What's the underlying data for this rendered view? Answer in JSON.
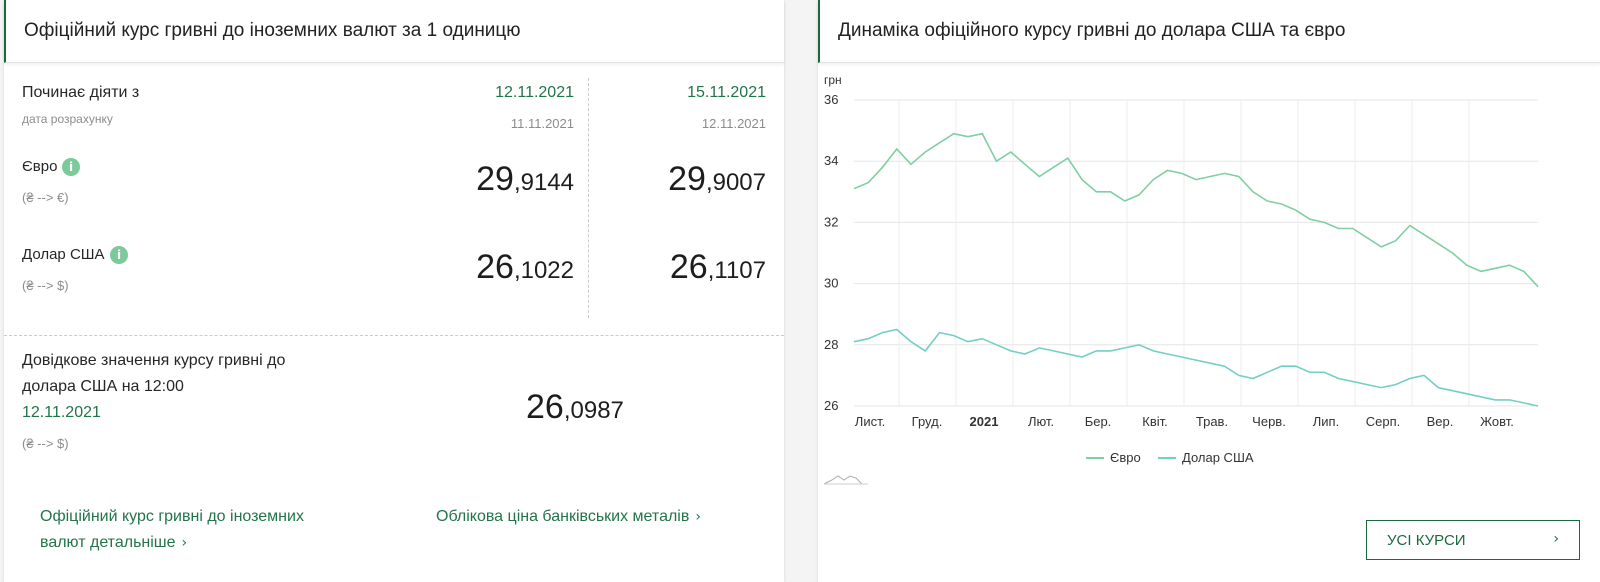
{
  "left": {
    "title": "Офіційний курс гривні до іноземних валют за 1 одиницю",
    "starts_label": "Починає діяти з",
    "calc_label": "дата розрахунку",
    "col1": {
      "date": "12.11.2021",
      "calc_date": "11.11.2021",
      "eur_int": "29",
      "eur_frac": ",9144",
      "usd_int": "26",
      "usd_frac": ",1022"
    },
    "col2": {
      "date": "15.11.2021",
      "calc_date": "12.11.2021",
      "eur_int": "29",
      "eur_frac": ",9007",
      "usd_int": "26",
      "usd_frac": ",1107"
    },
    "eur_label": "Євро",
    "eur_dir": "(₴ --> €)",
    "usd_label": "Долар США",
    "usd_dir": "(₴ --> $)",
    "ref_label_1": "Довідкове значення курсу гривні до",
    "ref_label_2": "долара США на 12:00",
    "ref_date": "12.11.2021",
    "ref_dir": "(₴ --> $)",
    "ref_int": "26",
    "ref_frac": ",0987",
    "link_detail_1": "Офіційний курс гривні до іноземних",
    "link_detail_2": "валют детальніше",
    "link_metals": "Облікова ціна банківських металів",
    "info_glyph": "i"
  },
  "right": {
    "title": "Динаміка офіційного курсу гривні до долара США та євро",
    "button_label": "УСІ КУРСИ"
  },
  "chart_data": {
    "type": "line",
    "title": "",
    "ylabel": "грн",
    "xlabel": "",
    "ylim": [
      26,
      36
    ],
    "yticks": [
      26,
      28,
      30,
      32,
      34,
      36
    ],
    "x_labels": [
      "Лист.",
      "Груд.",
      "2021",
      "Лют.",
      "Бер.",
      "Квіт.",
      "Трав.",
      "Черв.",
      "Лип.",
      "Серп.",
      "Вер.",
      "Жовт."
    ],
    "grid": true,
    "legend_position": "bottom",
    "colors": {
      "eur": "#7fcfa3",
      "usd": "#72cfc4"
    },
    "series": [
      {
        "name": "Євро",
        "values": [
          33.1,
          33.3,
          33.8,
          34.4,
          33.9,
          34.3,
          34.6,
          34.9,
          34.8,
          34.9,
          34.0,
          34.3,
          33.9,
          33.5,
          33.8,
          34.1,
          33.4,
          33.0,
          33.0,
          32.7,
          32.9,
          33.4,
          33.7,
          33.6,
          33.4,
          33.5,
          33.6,
          33.5,
          33.0,
          32.7,
          32.6,
          32.4,
          32.1,
          32.0,
          31.8,
          31.8,
          31.5,
          31.2,
          31.4,
          31.9,
          31.6,
          31.3,
          31.0,
          30.6,
          30.4,
          30.5,
          30.6,
          30.4,
          29.9
        ]
      },
      {
        "name": "Долар США",
        "values": [
          28.1,
          28.2,
          28.4,
          28.5,
          28.1,
          27.8,
          28.4,
          28.3,
          28.1,
          28.2,
          28.0,
          27.8,
          27.7,
          27.9,
          27.8,
          27.7,
          27.6,
          27.8,
          27.8,
          27.9,
          28.0,
          27.8,
          27.7,
          27.6,
          27.5,
          27.4,
          27.3,
          27.0,
          26.9,
          27.1,
          27.3,
          27.3,
          27.1,
          27.1,
          26.9,
          26.8,
          26.7,
          26.6,
          26.7,
          26.9,
          27.0,
          26.6,
          26.5,
          26.4,
          26.3,
          26.2,
          26.2,
          26.1,
          26.0
        ]
      }
    ]
  }
}
